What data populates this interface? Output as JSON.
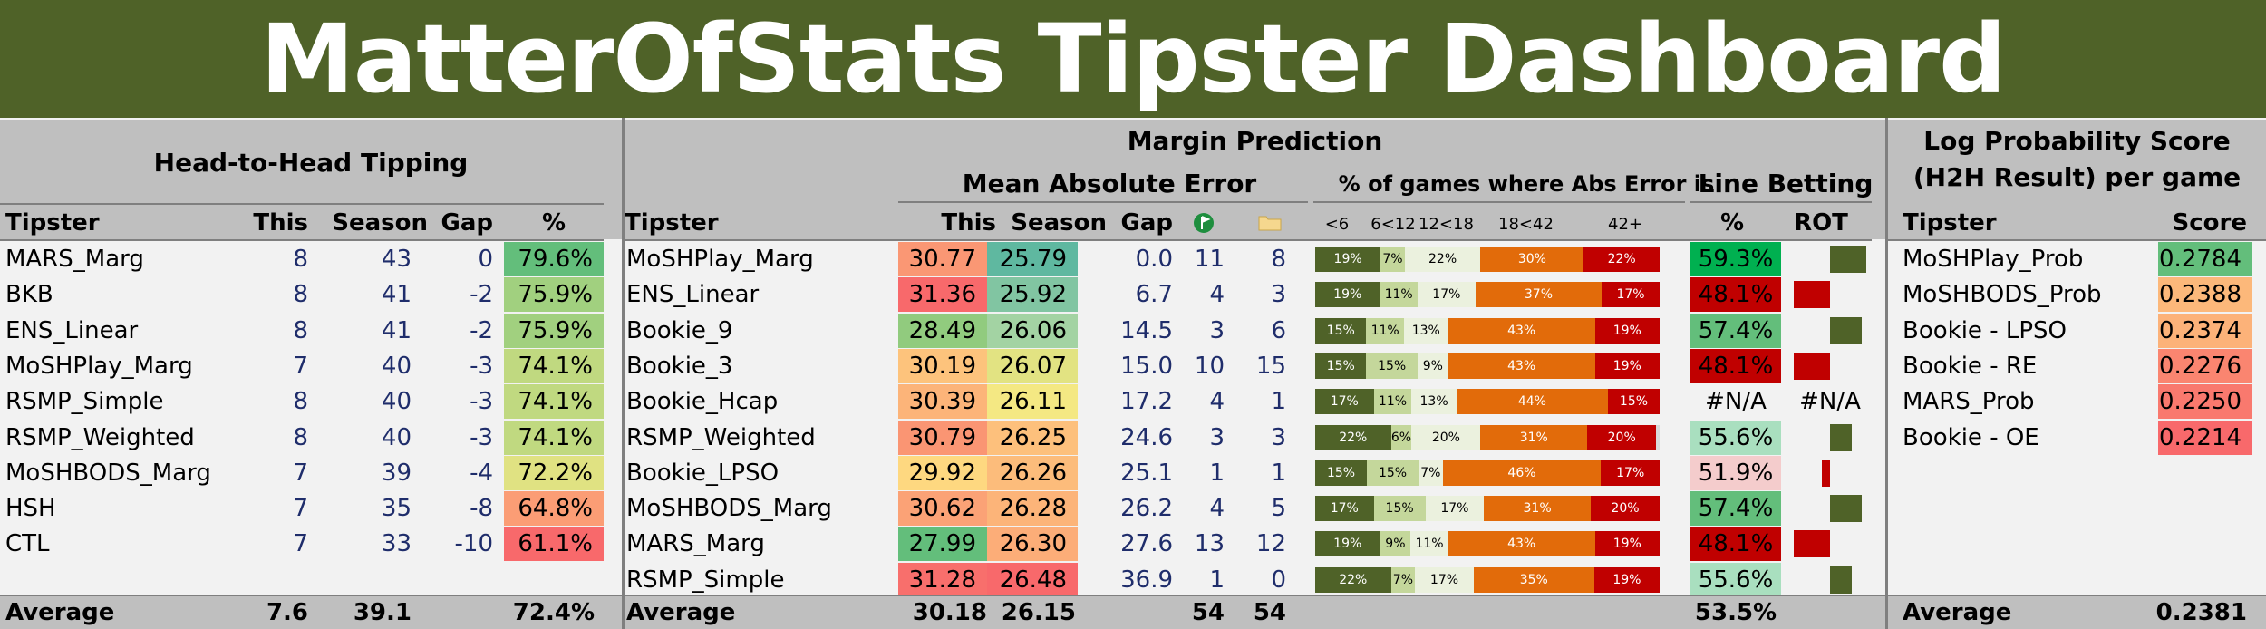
{
  "title": "MatterOfStats Tipster Dashboard",
  "colors": {
    "title_bg": "#4f6228",
    "band": "#bfbfbf",
    "rot_pos": "#4f6228",
    "rot_neg": "#c00000"
  },
  "h2h": {
    "section_title": "Head-to-Head Tipping",
    "headers": [
      "Tipster",
      "This",
      "Season",
      "Gap",
      "%"
    ],
    "rows": [
      {
        "tipster": "MARS_Marg",
        "this": "8",
        "season": "43",
        "gap": "0",
        "pct": "79.6%",
        "pct_val": 79.6
      },
      {
        "tipster": "BKB",
        "this": "8",
        "season": "41",
        "gap": "-2",
        "pct": "75.9%",
        "pct_val": 75.9
      },
      {
        "tipster": "ENS_Linear",
        "this": "8",
        "season": "41",
        "gap": "-2",
        "pct": "75.9%",
        "pct_val": 75.9
      },
      {
        "tipster": "MoSHPlay_Marg",
        "this": "7",
        "season": "40",
        "gap": "-3",
        "pct": "74.1%",
        "pct_val": 74.1
      },
      {
        "tipster": "RSMP_Simple",
        "this": "8",
        "season": "40",
        "gap": "-3",
        "pct": "74.1%",
        "pct_val": 74.1
      },
      {
        "tipster": "RSMP_Weighted",
        "this": "8",
        "season": "40",
        "gap": "-3",
        "pct": "74.1%",
        "pct_val": 74.1
      },
      {
        "tipster": "MoSHBODS_Marg",
        "this": "7",
        "season": "39",
        "gap": "-4",
        "pct": "72.2%",
        "pct_val": 72.2
      },
      {
        "tipster": "HSH",
        "this": "7",
        "season": "35",
        "gap": "-8",
        "pct": "64.8%",
        "pct_val": 64.8
      },
      {
        "tipster": "CTL",
        "this": "7",
        "season": "33",
        "gap": "-10",
        "pct": "61.1%",
        "pct_val": 61.1
      }
    ],
    "average": {
      "label": "Average",
      "this": "7.6",
      "season": "39.1",
      "pct": "72.4%"
    }
  },
  "margin": {
    "section_title": "Margin Prediction",
    "mae_title": "Mean Absolute Error",
    "dist_title": "% of games where Abs Error is",
    "line_title": "Line Betting",
    "headers": {
      "tipster": "Tipster",
      "this": "This",
      "season": "Season",
      "gap": "Gap",
      "pct": "%",
      "rot": "ROT"
    },
    "bucket_labels": [
      "<6",
      "6<12",
      "12<18",
      "18<42",
      "42+"
    ],
    "bucket_colors": [
      "#4f6228",
      "#c4d79b",
      "#ebf1de",
      "#e26b0a",
      "#c00000"
    ],
    "rows": [
      {
        "tipster": "MoSHPlay_Marg",
        "this": "30.77",
        "season": "25.79",
        "gap": "0.0",
        "ic1": "11",
        "ic2": "8",
        "dist": [
          "19%",
          "7%",
          "22%",
          "30%",
          "22%"
        ],
        "dist_val": [
          19,
          7,
          22,
          30,
          22
        ],
        "line_pct": "59.3%",
        "line_color": "#00b050",
        "rot": 0.9
      },
      {
        "tipster": "ENS_Linear",
        "this": "31.36",
        "season": "25.92",
        "gap": "6.7",
        "ic1": "4",
        "ic2": "3",
        "dist": [
          "19%",
          "11%",
          "17%",
          "37%",
          "17%"
        ],
        "dist_val": [
          19,
          11,
          17,
          37,
          17
        ],
        "line_pct": "48.1%",
        "line_color": "#c00000",
        "rot": -0.9
      },
      {
        "tipster": "Bookie_9",
        "this": "28.49",
        "season": "26.06",
        "gap": "14.5",
        "ic1": "3",
        "ic2": "6",
        "dist": [
          "15%",
          "11%",
          "13%",
          "43%",
          "19%"
        ],
        "dist_val": [
          15,
          11,
          13,
          43,
          19
        ],
        "line_pct": "57.4%",
        "line_color": "#63be7b",
        "rot": 0.8
      },
      {
        "tipster": "Bookie_3",
        "this": "30.19",
        "season": "26.07",
        "gap": "15.0",
        "ic1": "10",
        "ic2": "15",
        "dist": [
          "15%",
          "15%",
          "9%",
          "43%",
          "19%"
        ],
        "dist_val": [
          15,
          15,
          9,
          43,
          19
        ],
        "line_pct": "48.1%",
        "line_color": "#c00000",
        "rot": -0.9
      },
      {
        "tipster": "Bookie_Hcap",
        "this": "30.39",
        "season": "26.11",
        "gap": "17.2",
        "ic1": "4",
        "ic2": "1",
        "dist": [
          "17%",
          "11%",
          "13%",
          "44%",
          "15%"
        ],
        "dist_val": [
          17,
          11,
          13,
          44,
          15
        ],
        "line_pct": "#N/A",
        "line_color": "",
        "rot_text": "#N/A",
        "rot": 0
      },
      {
        "tipster": "RSMP_Weighted",
        "this": "30.79",
        "season": "26.25",
        "gap": "24.6",
        "ic1": "3",
        "ic2": "3",
        "dist": [
          "22%",
          "6%",
          "20%",
          "31%",
          "20%"
        ],
        "dist_val": [
          22,
          6,
          20,
          31,
          20
        ],
        "line_pct": "55.6%",
        "line_color": "#a9dfbf",
        "rot": 0.55
      },
      {
        "tipster": "Bookie_LPSO",
        "this": "29.92",
        "season": "26.26",
        "gap": "25.1",
        "ic1": "1",
        "ic2": "1",
        "dist": [
          "15%",
          "15%",
          "7%",
          "46%",
          "17%"
        ],
        "dist_val": [
          15,
          15,
          7,
          46,
          17
        ],
        "line_pct": "51.9%",
        "line_color": "#f4cccc",
        "rot": -0.2
      },
      {
        "tipster": "MoSHBODS_Marg",
        "this": "30.62",
        "season": "26.28",
        "gap": "26.2",
        "ic1": "4",
        "ic2": "5",
        "dist": [
          "17%",
          "15%",
          "17%",
          "31%",
          "20%"
        ],
        "dist_val": [
          17,
          15,
          17,
          31,
          20
        ],
        "line_pct": "57.4%",
        "line_color": "#63be7b",
        "rot": 0.8
      },
      {
        "tipster": "MARS_Marg",
        "this": "27.99",
        "season": "26.30",
        "gap": "27.6",
        "ic1": "13",
        "ic2": "12",
        "dist": [
          "19%",
          "9%",
          "11%",
          "43%",
          "19%"
        ],
        "dist_val": [
          19,
          9,
          11,
          43,
          19
        ],
        "line_pct": "48.1%",
        "line_color": "#c00000",
        "rot": -0.9
      },
      {
        "tipster": "RSMP_Simple",
        "this": "31.28",
        "season": "26.48",
        "gap": "36.9",
        "ic1": "1",
        "ic2": "0",
        "dist": [
          "22%",
          "7%",
          "17%",
          "35%",
          "19%"
        ],
        "dist_val": [
          22,
          7,
          17,
          35,
          19
        ],
        "line_pct": "55.6%",
        "line_color": "#a9dfbf",
        "rot": 0.55
      }
    ],
    "average": {
      "label": "Average",
      "this": "30.18",
      "season": "26.15",
      "ic1": "54",
      "ic2": "54",
      "line_pct": "53.5%"
    }
  },
  "lps": {
    "section_title_1": "Log Probability Score",
    "section_title_2": "(H2H Result) per game",
    "headers": [
      "Tipster",
      "Score"
    ],
    "rows": [
      {
        "tipster": "MoSHPlay_Prob",
        "score": "0.2784",
        "val": 0.2784
      },
      {
        "tipster": "MoSHBODS_Prob",
        "score": "0.2388",
        "val": 0.2388
      },
      {
        "tipster": "Bookie - LPSO",
        "score": "0.2374",
        "val": 0.2374
      },
      {
        "tipster": "Bookie - RE",
        "score": "0.2276",
        "val": 0.2276
      },
      {
        "tipster": "MARS_Prob",
        "score": "0.2250",
        "val": 0.225
      },
      {
        "tipster": "Bookie - OE",
        "score": "0.2214",
        "val": 0.2214
      }
    ],
    "average": {
      "label": "Average",
      "score": "0.2381"
    }
  }
}
